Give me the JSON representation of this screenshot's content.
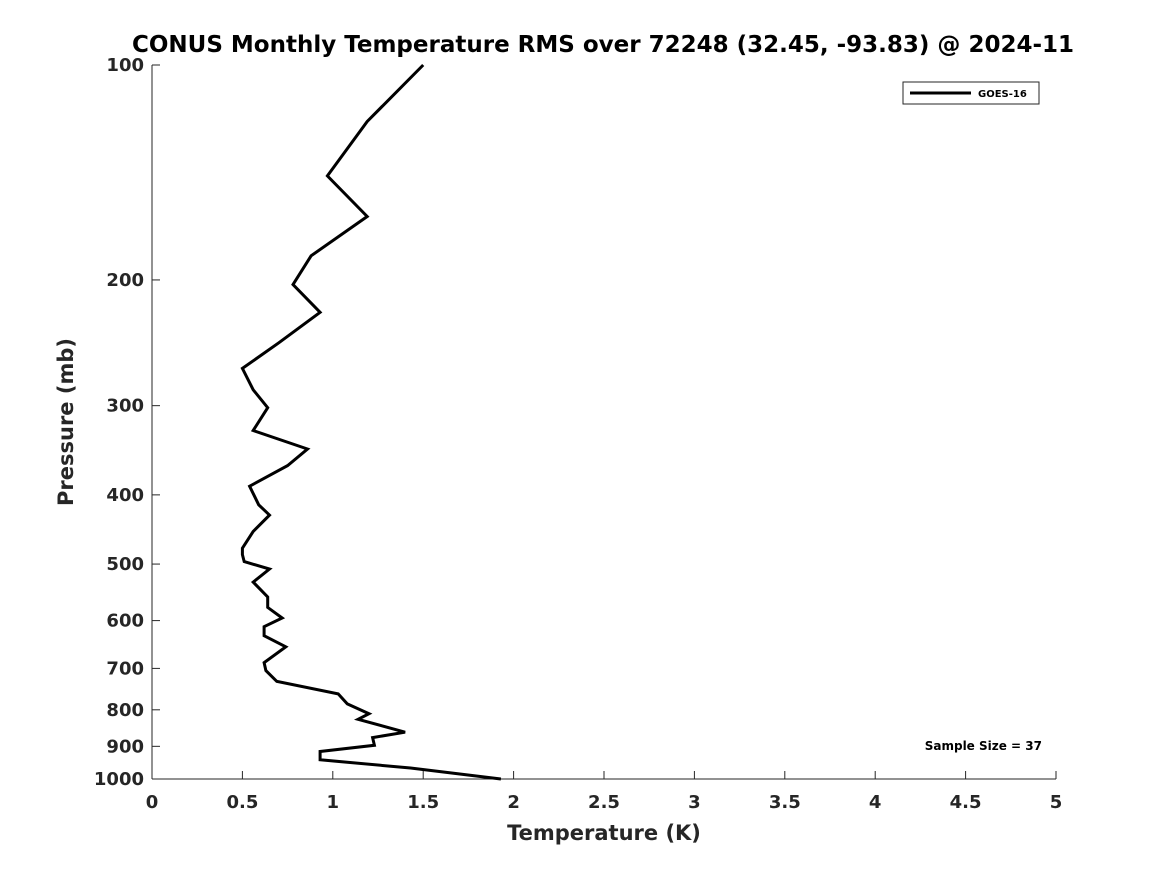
{
  "chart_data": {
    "type": "line",
    "title": "CONUS Monthly Temperature RMS over 72248 (32.45, -93.83) @ 2024-11",
    "xlabel": "Temperature (K)",
    "ylabel": "Pressure (mb)",
    "xlim": [
      0,
      5
    ],
    "ylim": [
      100,
      1000
    ],
    "y_scale": "log",
    "y_direction": "reversed",
    "grid": false,
    "legend_position": "top-right",
    "x_ticks": [
      0,
      0.5,
      1,
      1.5,
      2,
      2.5,
      3,
      3.5,
      4,
      4.5,
      5
    ],
    "x_tick_labels": [
      "0",
      "0.5",
      "1",
      "1.5",
      "2",
      "2.5",
      "3",
      "3.5",
      "4",
      "4.5",
      "5"
    ],
    "y_ticks": [
      100,
      200,
      300,
      400,
      500,
      600,
      700,
      800,
      900,
      1000
    ],
    "y_tick_labels": [
      "100",
      "200",
      "300",
      "400",
      "500",
      "600",
      "700",
      "800",
      "900",
      "1000"
    ],
    "series": [
      {
        "name": "GOES-16",
        "color": "#000000",
        "x": [
          1.5,
          1.19,
          0.97,
          1.19,
          0.88,
          0.78,
          0.93,
          0.7,
          0.5,
          0.56,
          0.64,
          0.56,
          0.86,
          0.75,
          0.54,
          0.59,
          0.65,
          0.56,
          0.5,
          0.5,
          0.51,
          0.65,
          0.56,
          0.64,
          0.64,
          0.72,
          0.62,
          0.62,
          0.74,
          0.62,
          0.63,
          0.69,
          1.03,
          1.08,
          1.2,
          1.14,
          1.4,
          1.22,
          1.23,
          0.93,
          0.93,
          1.43,
          1.93
        ],
        "y": [
          100,
          120,
          143,
          163,
          185,
          203,
          222,
          245,
          266,
          285,
          302,
          325,
          345,
          364,
          389,
          413,
          427,
          450,
          475,
          485,
          496,
          508,
          530,
          556,
          575,
          595,
          612,
          630,
          653,
          687,
          705,
          730,
          760,
          785,
          810,
          825,
          860,
          875,
          897,
          915,
          940,
          965,
          1000
        ]
      }
    ],
    "annotations": [
      "Sample Size = 37"
    ]
  }
}
